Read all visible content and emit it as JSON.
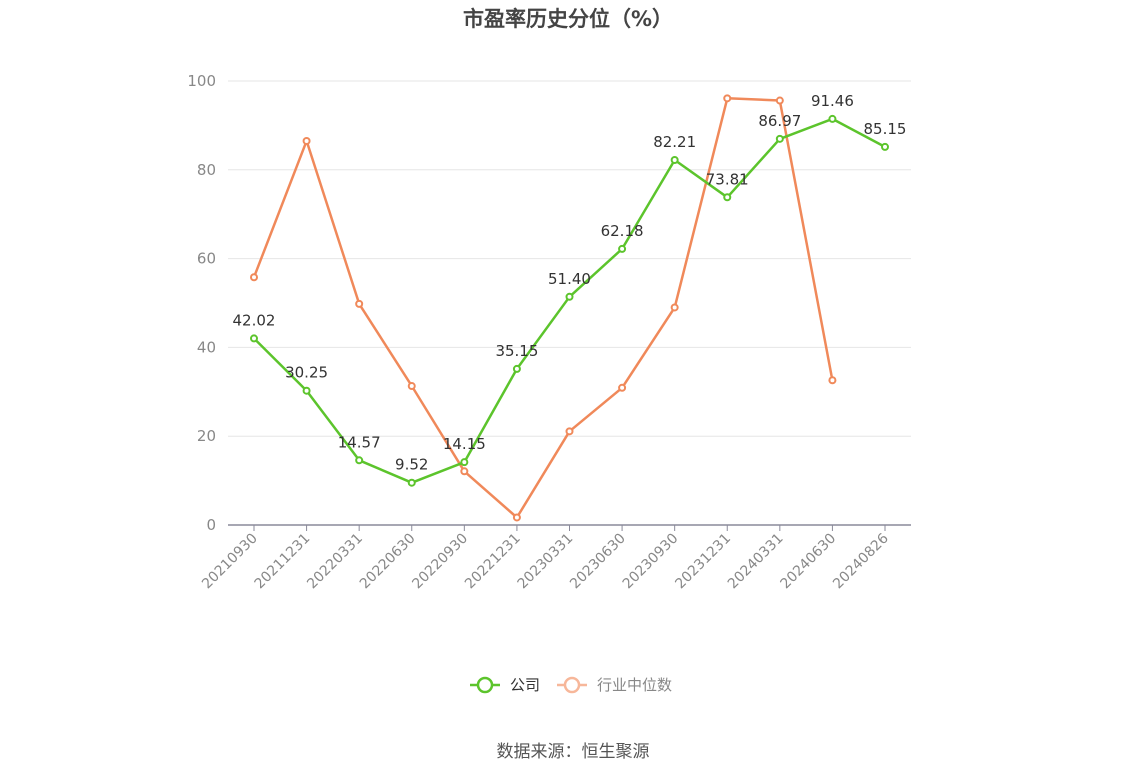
{
  "chart_data": {
    "type": "line",
    "title": "市盈率历史分位（%）",
    "xlabel": "",
    "ylabel": "",
    "ylim": [
      0,
      100
    ],
    "yticks": [
      0,
      20,
      40,
      60,
      80,
      100
    ],
    "grid": true,
    "legend_position": "bottom-center",
    "categories": [
      "20210930",
      "20211231",
      "20220331",
      "20220630",
      "20220930",
      "20221231",
      "20230331",
      "20230630",
      "20230930",
      "20231231",
      "20240331",
      "20240630",
      "20240826"
    ],
    "series": [
      {
        "name": "公司",
        "color": "#5cc42c",
        "values": [
          42.02,
          30.25,
          14.57,
          9.52,
          14.15,
          35.15,
          51.4,
          62.18,
          82.21,
          73.81,
          86.97,
          91.46,
          85.15
        ],
        "labels": [
          "42.02",
          "30.25",
          "14.57",
          "9.52",
          "14.15",
          "35.15",
          "51.40",
          "62.18",
          "82.21",
          "73.81",
          "86.97",
          "91.46",
          "85.15"
        ]
      },
      {
        "name": "行业中位数",
        "color": "#f0895a",
        "legend_color": "#f7b79a",
        "values": [
          55.8,
          86.5,
          49.8,
          31.3,
          12.1,
          1.7,
          21.1,
          30.9,
          49.0,
          96.1,
          95.6,
          32.6,
          null
        ]
      }
    ]
  },
  "source_text": "数据来源：恒生聚源"
}
